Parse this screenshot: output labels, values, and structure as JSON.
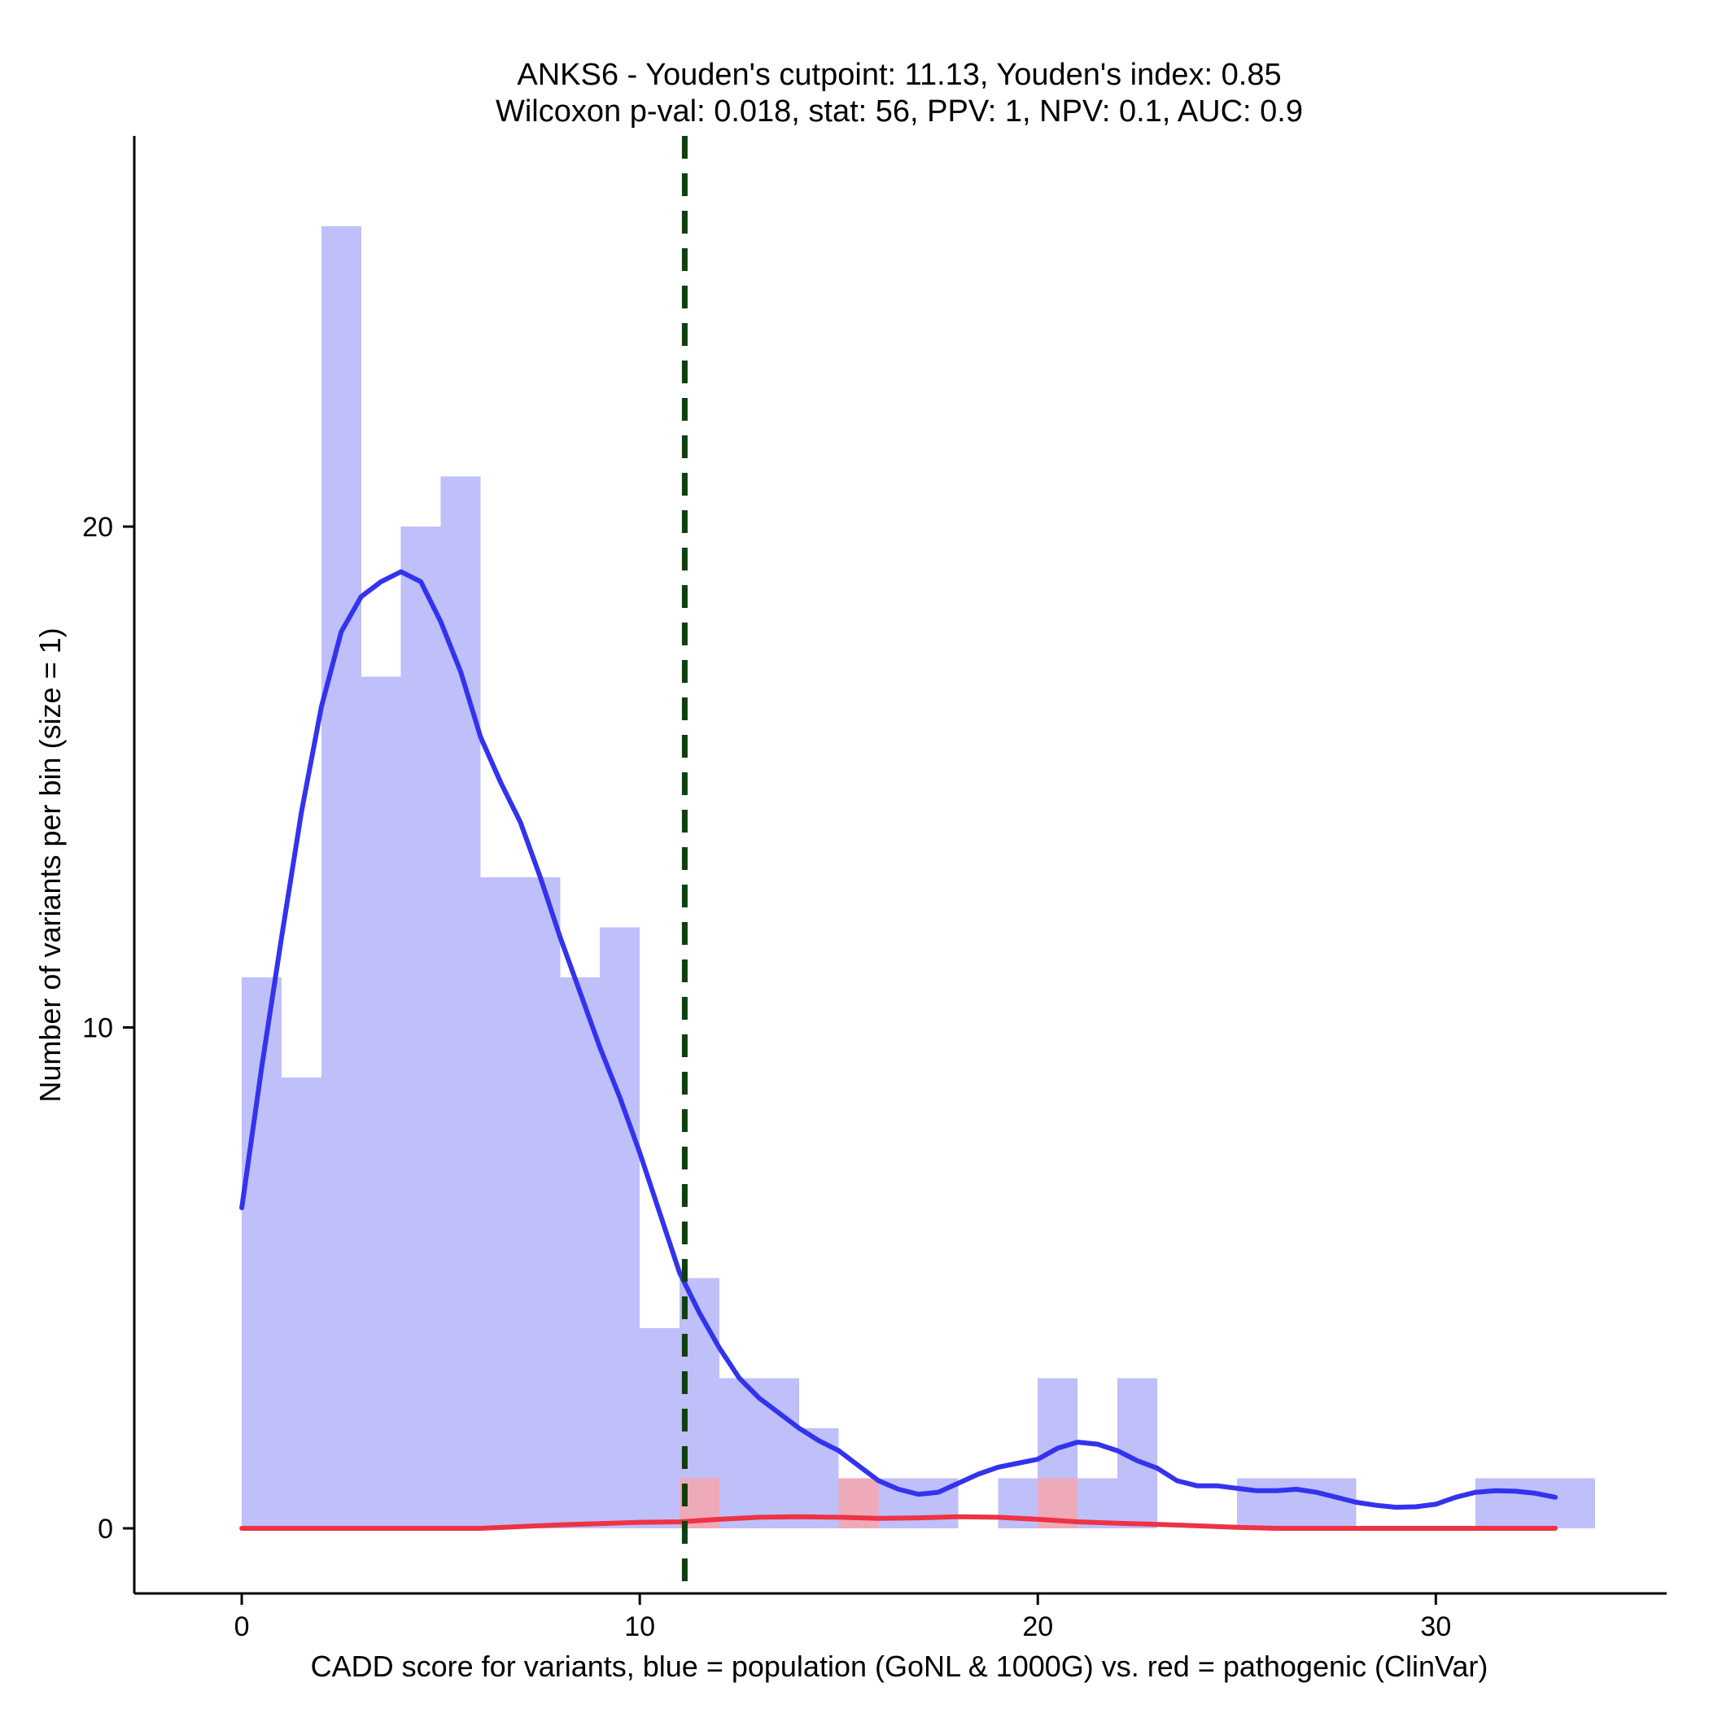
{
  "chart_data": {
    "type": "histogram",
    "title": "ANKS6 - Youden's cutpoint: 11.13, Youden's index: 0.85",
    "subtitle": "Wilcoxon p-val: 0.018, stat: 56, PPV: 1, NPV: 0.1, AUC: 0.9",
    "xlabel": "CADD score for variants, blue = population (GoNL & 1000G) vs. red = pathogenic (ClinVar)",
    "ylabel": "Number of variants per bin (size = 1)",
    "xlim": [
      -2.7,
      35.8
    ],
    "ylim": [
      -1.3,
      27.8
    ],
    "x_ticks": [
      0,
      10,
      20,
      30
    ],
    "x_tick_labels": [
      "0",
      "10",
      "20",
      "30"
    ],
    "y_ticks": [
      0,
      10,
      20
    ],
    "y_tick_labels": [
      "0",
      "10",
      "20"
    ],
    "bin_width": 1,
    "cutpoint": 11.13,
    "colors": {
      "population_fill": "#bfbffa",
      "pathogenic_fill": "#ffa3a3",
      "population_line": "#3333ee",
      "pathogenic_line": "#ee3344",
      "cutpoint_line": "#0b420b"
    },
    "series": [
      {
        "name": "population (GoNL & 1000G)",
        "bins": [
          {
            "start": 0,
            "count": 11
          },
          {
            "start": 1,
            "count": 9
          },
          {
            "start": 2,
            "count": 26
          },
          {
            "start": 3,
            "count": 17
          },
          {
            "start": 4,
            "count": 20
          },
          {
            "start": 5,
            "count": 21
          },
          {
            "start": 6,
            "count": 13
          },
          {
            "start": 7,
            "count": 13
          },
          {
            "start": 8,
            "count": 11
          },
          {
            "start": 9,
            "count": 12
          },
          {
            "start": 10,
            "count": 4
          },
          {
            "start": 11,
            "count": 5
          },
          {
            "start": 12,
            "count": 3
          },
          {
            "start": 13,
            "count": 3
          },
          {
            "start": 14,
            "count": 2
          },
          {
            "start": 15,
            "count": 1
          },
          {
            "start": 16,
            "count": 1
          },
          {
            "start": 17,
            "count": 1
          },
          {
            "start": 19,
            "count": 1
          },
          {
            "start": 20,
            "count": 3
          },
          {
            "start": 21,
            "count": 1
          },
          {
            "start": 22,
            "count": 3
          },
          {
            "start": 25,
            "count": 1
          },
          {
            "start": 26,
            "count": 1
          },
          {
            "start": 27,
            "count": 1
          },
          {
            "start": 31,
            "count": 1
          },
          {
            "start": 32,
            "count": 1
          },
          {
            "start": 33,
            "count": 1
          }
        ],
        "density_curve": [
          [
            0,
            6.4
          ],
          [
            0.5,
            9.2
          ],
          [
            1,
            11.8
          ],
          [
            1.5,
            14.3
          ],
          [
            2,
            16.4
          ],
          [
            2.5,
            17.9
          ],
          [
            3,
            18.6
          ],
          [
            3.5,
            18.9
          ],
          [
            4,
            19.1
          ],
          [
            4.5,
            18.9
          ],
          [
            5,
            18.1
          ],
          [
            5.5,
            17.1
          ],
          [
            6,
            15.8
          ],
          [
            6.5,
            14.9
          ],
          [
            7,
            14.1
          ],
          [
            7.5,
            13.0
          ],
          [
            8,
            11.8
          ],
          [
            8.5,
            10.7
          ],
          [
            9,
            9.6
          ],
          [
            9.5,
            8.6
          ],
          [
            10,
            7.5
          ],
          [
            10.5,
            6.3
          ],
          [
            11,
            5.1
          ],
          [
            11.5,
            4.3
          ],
          [
            12,
            3.6
          ],
          [
            12.5,
            3.0
          ],
          [
            13,
            2.6
          ],
          [
            13.5,
            2.3
          ],
          [
            14,
            2.0
          ],
          [
            14.5,
            1.75
          ],
          [
            15,
            1.55
          ],
          [
            15.5,
            1.25
          ],
          [
            16,
            0.95
          ],
          [
            16.5,
            0.78
          ],
          [
            17,
            0.68
          ],
          [
            17.5,
            0.72
          ],
          [
            18,
            0.9
          ],
          [
            18.5,
            1.08
          ],
          [
            19,
            1.22
          ],
          [
            19.5,
            1.3
          ],
          [
            20,
            1.38
          ],
          [
            20.5,
            1.6
          ],
          [
            21,
            1.72
          ],
          [
            21.5,
            1.68
          ],
          [
            22,
            1.55
          ],
          [
            22.5,
            1.35
          ],
          [
            23,
            1.2
          ],
          [
            23.5,
            0.95
          ],
          [
            24,
            0.85
          ],
          [
            24.5,
            0.85
          ],
          [
            25,
            0.8
          ],
          [
            25.5,
            0.75
          ],
          [
            26,
            0.75
          ],
          [
            26.5,
            0.78
          ],
          [
            27,
            0.72
          ],
          [
            27.5,
            0.62
          ],
          [
            28,
            0.52
          ],
          [
            28.5,
            0.46
          ],
          [
            29,
            0.42
          ],
          [
            29.5,
            0.43
          ],
          [
            30,
            0.48
          ],
          [
            30.5,
            0.62
          ],
          [
            31,
            0.72
          ],
          [
            31.5,
            0.75
          ],
          [
            32,
            0.74
          ],
          [
            32.5,
            0.7
          ],
          [
            33,
            0.62
          ]
        ]
      },
      {
        "name": "pathogenic (ClinVar)",
        "bins": [
          {
            "start": 11,
            "count": 1
          },
          {
            "start": 15,
            "count": 1
          },
          {
            "start": 20,
            "count": 1
          }
        ],
        "density_curve": [
          [
            0,
            0
          ],
          [
            6,
            0
          ],
          [
            8,
            0.07
          ],
          [
            10,
            0.12
          ],
          [
            11,
            0.13
          ],
          [
            12,
            0.18
          ],
          [
            13,
            0.22
          ],
          [
            14,
            0.23
          ],
          [
            15,
            0.22
          ],
          [
            16,
            0.2
          ],
          [
            17,
            0.21
          ],
          [
            18,
            0.23
          ],
          [
            19,
            0.22
          ],
          [
            20,
            0.18
          ],
          [
            21,
            0.13
          ],
          [
            22,
            0.1
          ],
          [
            23,
            0.08
          ],
          [
            24,
            0.05
          ],
          [
            25,
            0.02
          ],
          [
            26,
            0
          ],
          [
            30,
            0
          ],
          [
            33,
            0
          ]
        ]
      }
    ]
  }
}
